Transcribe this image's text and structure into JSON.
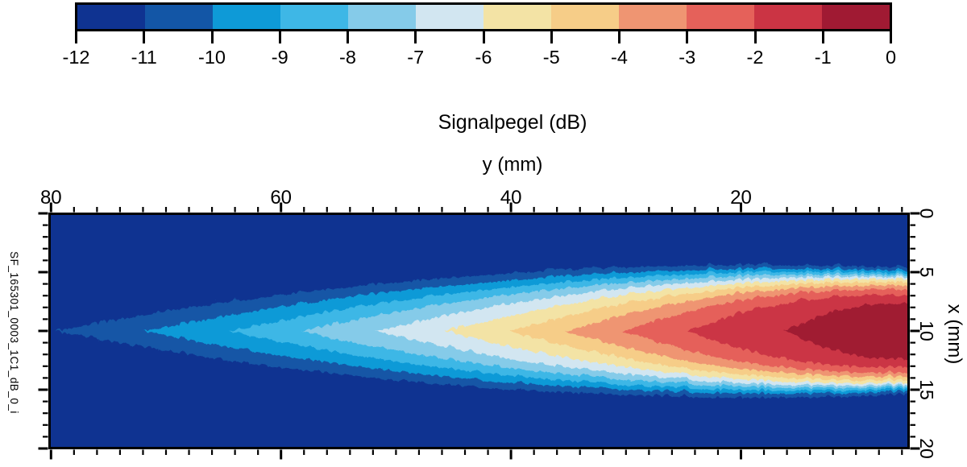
{
  "title": "Signalpegel (dB)",
  "side_label": "SF_165301_0003_1C1_dB_0_i",
  "colorbar": {
    "tick_labels": [
      "-12",
      "-11",
      "-10",
      "-9",
      "-8",
      "-7",
      "-6",
      "-5",
      "-4",
      "-3",
      "-2",
      "-1",
      "0"
    ],
    "segment_colors": [
      "#0f3391",
      "#1356a6",
      "#0e9ad7",
      "#3eb7e6",
      "#85cbe9",
      "#d2e6f1",
      "#f3e3a5",
      "#f6cd88",
      "#ef9572",
      "#e5615a",
      "#cb3444",
      "#a01a33"
    ],
    "border_color": "#000000"
  },
  "axes": {
    "top": {
      "label": "y (mm)",
      "tick_labels": [
        "80",
        "60",
        "40",
        "20"
      ],
      "tick_values": [
        80,
        60,
        40,
        20
      ],
      "minor_step_mm": 2,
      "range_mm": [
        80.2,
        5.4
      ],
      "reversed": true
    },
    "right": {
      "label": "x (mm)",
      "tick_labels": [
        "0",
        "5",
        "10",
        "15",
        "20"
      ],
      "tick_values": [
        0,
        5,
        10,
        15,
        20
      ],
      "minor_step_mm": 1,
      "range_mm": [
        0,
        20
      ]
    }
  },
  "chart_data": {
    "type": "heatmap",
    "title": "Signalpegel (dB)",
    "xlabel": "y (mm)",
    "ylabel": "x (mm)",
    "value_label": "Signalpegel (dB)",
    "x_axis": {
      "range": [
        80.2,
        5.4
      ],
      "reversed": true,
      "major_ticks": [
        80,
        60,
        40,
        20
      ],
      "minor_step": 2
    },
    "y_axis": {
      "range": [
        0,
        20
      ],
      "major_ticks": [
        0,
        5,
        10,
        15,
        20
      ],
      "minor_step": 1
    },
    "levels_db": [
      -12,
      -11,
      -10,
      -9,
      -8,
      -7,
      -6,
      -5,
      -4,
      -3,
      -2,
      -1,
      0
    ],
    "background_level_db": -12,
    "beam_center_x_mm": 9.9,
    "contour_bands": [
      {
        "level_db": -11,
        "tip_y_mm": 79.8,
        "max_half_mm": 6.05,
        "edge_half_mm": 5.3
      },
      {
        "level_db": -10,
        "tip_y_mm": 72.0,
        "max_half_mm": 5.65,
        "edge_half_mm": 5.05
      },
      {
        "level_db": -9,
        "tip_y_mm": 64.6,
        "max_half_mm": 5.35,
        "edge_half_mm": 4.85
      },
      {
        "level_db": -8,
        "tip_y_mm": 58.3,
        "max_half_mm": 5.05,
        "edge_half_mm": 4.7
      },
      {
        "level_db": -7,
        "tip_y_mm": 51.9,
        "max_half_mm": 4.8,
        "edge_half_mm": 4.55
      },
      {
        "level_db": -6,
        "tip_y_mm": 45.9,
        "max_half_mm": 4.55,
        "edge_half_mm": 4.4
      },
      {
        "level_db": -5,
        "tip_y_mm": 40.3,
        "max_half_mm": 4.3,
        "edge_half_mm": 4.15
      },
      {
        "level_db": -4,
        "tip_y_mm": 35.4,
        "max_half_mm": 4.0,
        "edge_half_mm": 3.85
      },
      {
        "level_db": -3,
        "tip_y_mm": 30.5,
        "max_half_mm": 3.7,
        "edge_half_mm": 3.5
      },
      {
        "level_db": -2,
        "tip_y_mm": 24.8,
        "max_half_mm": 3.3,
        "edge_half_mm": 2.9
      },
      {
        "level_db": -1,
        "tip_y_mm": 16.3,
        "max_half_mm": 2.55,
        "edge_half_mm": 2.2
      }
    ]
  }
}
